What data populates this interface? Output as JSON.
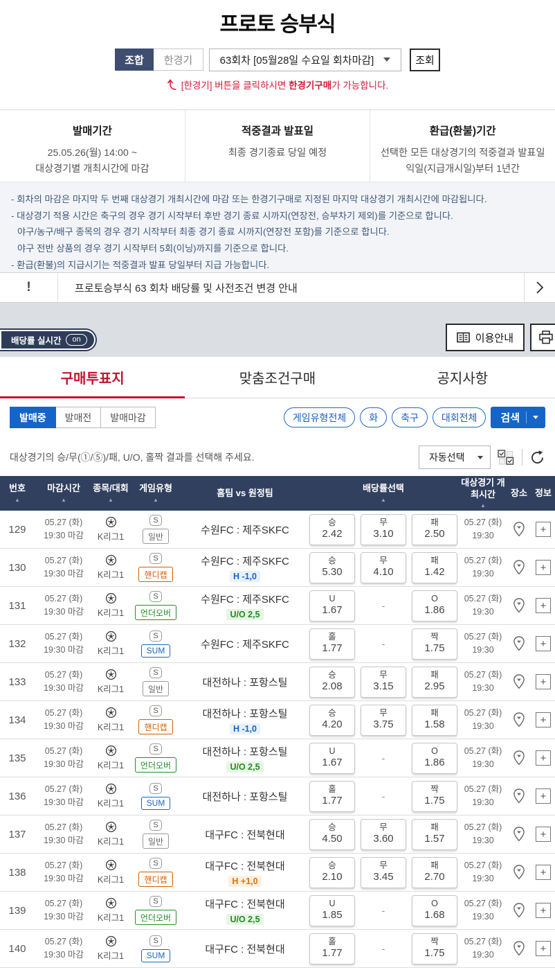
{
  "page_title": "프로토 승부식",
  "top_controls": {
    "combo_tab": "조합",
    "single_tab": "한경기",
    "round_dropdown": "63회차 [05월28일 수요일 회차마감]",
    "inquiry_button": "조회",
    "notice_pre": "[한경기] 버튼을 클릭하시면 ",
    "notice_bold": "한경기구매",
    "notice_post": "가 가능합니다."
  },
  "info_cards": [
    {
      "title": "발매기간",
      "lines": [
        "25.05.26(월) 14:00 ~",
        "대상경기별 개최시간에 마감"
      ]
    },
    {
      "title": "적중결과 발표일",
      "lines": [
        "최종 경기종료 당일 예정"
      ]
    },
    {
      "title": "환급(환불)기간",
      "lines": [
        "선택한 모든 대상경기의 적중결과 발표일",
        "익일(지급개시일)부터 1년간"
      ]
    }
  ],
  "notes": [
    {
      "indent": false,
      "text": "- 회차의 마감은 마지막 두 번째 대상경기 개최시간에 마감 또는 한경기구매로 지정된 마지막 대상경기 개최시간에 마감됩니다."
    },
    {
      "indent": false,
      "text": "- 대상경기 적용 시간은 축구의 경우 경기 시작부터 후반 경기 종료 시까지(연장전, 승부차기 제외)를 기준으로 합니다."
    },
    {
      "indent": true,
      "text": "야구/농구/배구 종목의 경우 경기 시작부터 최종 경기 종료 시까지(연장전 포함)를 기준으로 합니다."
    },
    {
      "indent": true,
      "text": "야구 전반 상품의 경우 경기 시작부터 5회(이닝)까지를 기준으로 합니다."
    },
    {
      "indent": false,
      "text": "- 환급(환불)의 지급시기는 적중결과 발표 당일부터 지급 가능합니다."
    }
  ],
  "notice_bar": {
    "icon_text": "!",
    "text": "프로토승부식 63 회차 배당률 및 사전조건 변경 안내"
  },
  "utility_bar": {
    "realtime_label": "배당률 실시간",
    "realtime_state": "on",
    "guide_button": "이용안내"
  },
  "tabs": [
    {
      "label": "구매투표지",
      "active": true
    },
    {
      "label": "맞춤조건구매",
      "active": false
    },
    {
      "label": "공지사항",
      "active": false
    }
  ],
  "filters": {
    "status": [
      {
        "label": "발매중",
        "active": true
      },
      {
        "label": "발매전",
        "active": false
      },
      {
        "label": "발매마감",
        "active": false
      }
    ],
    "pills": [
      "게임유형전체",
      "화",
      "축구",
      "대회전체"
    ],
    "search_button": "검색"
  },
  "selection_bar": {
    "instruction": "대상경기의 승/무(①/⑤)/패, U/O, 홀짝 결과를 선택해 주세요.",
    "auto_select": "자동선택"
  },
  "icons": {
    "sport": "soccer-ball-icon",
    "game_scope": "single-game-s-icon",
    "place": "map-pin-icon",
    "info": "plus-icon",
    "guide": "book-icon",
    "print": "printer-icon",
    "notice": "exclamation-icon",
    "chevron": "chevron-right-icon",
    "arrow": "curved-up-arrow-icon",
    "refresh": "refresh-icon",
    "multi_check": "multi-checkbox-icon"
  },
  "colors": {
    "accent_red": "#c41230",
    "navy": "#31405f",
    "blue": "#1565c8",
    "orange": "#d35f00",
    "green": "#238a23"
  },
  "table": {
    "headers": [
      {
        "label": "번호",
        "sort": true
      },
      {
        "label": "마감시간",
        "sort": true
      },
      {
        "label": "종목/대회",
        "sort": true
      },
      {
        "label": "게임유형",
        "sort": true
      },
      {
        "label": "홈팀 vs 원정팀",
        "sort": false
      },
      {
        "label": "배당률선택",
        "sort": true
      },
      {
        "label": "대상경기 개최시간",
        "sort": true
      },
      {
        "label": "장소",
        "sort": false
      },
      {
        "label": "정보",
        "sort": false
      }
    ],
    "rows": [
      {
        "no": "129",
        "deadline": [
          "05.27 (화)",
          "19:30 마감"
        ],
        "league": "K리그1",
        "type": {
          "label": "일반",
          "style": "normal"
        },
        "teams": "수원FC : 제주SKFC",
        "condition": null,
        "odds": [
          {
            "label": "승",
            "value": "2.42"
          },
          {
            "label": "무",
            "value": "3.10"
          },
          {
            "label": "패",
            "value": "2.50"
          }
        ],
        "start": [
          "05.27 (화)",
          "19:30"
        ]
      },
      {
        "no": "130",
        "deadline": [
          "05.27 (화)",
          "19:30 마감"
        ],
        "league": "K리그1",
        "type": {
          "label": "핸디캡",
          "style": "handicap"
        },
        "teams": "수원FC : 제주SKFC",
        "condition": {
          "text": "H -1,0",
          "style": "blue"
        },
        "odds": [
          {
            "label": "승",
            "value": "5.30"
          },
          {
            "label": "무",
            "value": "4.10"
          },
          {
            "label": "패",
            "value": "1.42"
          }
        ],
        "start": [
          "05.27 (화)",
          "19:30"
        ]
      },
      {
        "no": "131",
        "deadline": [
          "05.27 (화)",
          "19:30 마감"
        ],
        "league": "K리그1",
        "type": {
          "label": "언더오버",
          "style": "underover"
        },
        "teams": "수원FC : 제주SKFC",
        "condition": {
          "text": "U/O 2,5",
          "style": "green"
        },
        "odds": [
          {
            "label": "U",
            "value": "1.67"
          },
          {
            "dash": "-"
          },
          {
            "label": "O",
            "value": "1.86"
          }
        ],
        "start": [
          "05.27 (화)",
          "19:30"
        ]
      },
      {
        "no": "132",
        "deadline": [
          "05.27 (화)",
          "19:30 마감"
        ],
        "league": "K리그1",
        "type": {
          "label": "SUM",
          "style": "sum"
        },
        "teams": "수원FC : 제주SKFC",
        "condition": null,
        "odds": [
          {
            "label": "홀",
            "value": "1.77"
          },
          {
            "dash": "-"
          },
          {
            "label": "짝",
            "value": "1.75"
          }
        ],
        "start": [
          "05.27 (화)",
          "19:30"
        ]
      },
      {
        "no": "133",
        "deadline": [
          "05.27 (화)",
          "19:30 마감"
        ],
        "league": "K리그1",
        "type": {
          "label": "일반",
          "style": "normal"
        },
        "teams": "대전하나 : 포항스틸",
        "condition": null,
        "odds": [
          {
            "label": "승",
            "value": "2.08"
          },
          {
            "label": "무",
            "value": "3.15"
          },
          {
            "label": "패",
            "value": "2.95"
          }
        ],
        "start": [
          "05.27 (화)",
          "19:30"
        ]
      },
      {
        "no": "134",
        "deadline": [
          "05.27 (화)",
          "19:30 마감"
        ],
        "league": "K리그1",
        "type": {
          "label": "핸디캡",
          "style": "handicap"
        },
        "teams": "대전하나 : 포항스틸",
        "condition": {
          "text": "H -1,0",
          "style": "blue"
        },
        "odds": [
          {
            "label": "승",
            "value": "4.20"
          },
          {
            "label": "무",
            "value": "3.75"
          },
          {
            "label": "패",
            "value": "1.58"
          }
        ],
        "start": [
          "05.27 (화)",
          "19:30"
        ]
      },
      {
        "no": "135",
        "deadline": [
          "05.27 (화)",
          "19:30 마감"
        ],
        "league": "K리그1",
        "type": {
          "label": "언더오버",
          "style": "underover"
        },
        "teams": "대전하나 : 포항스틸",
        "condition": {
          "text": "U/O 2,5",
          "style": "green"
        },
        "odds": [
          {
            "label": "U",
            "value": "1.67"
          },
          {
            "dash": "-"
          },
          {
            "label": "O",
            "value": "1.86"
          }
        ],
        "start": [
          "05.27 (화)",
          "19:30"
        ]
      },
      {
        "no": "136",
        "deadline": [
          "05.27 (화)",
          "19:30 마감"
        ],
        "league": "K리그1",
        "type": {
          "label": "SUM",
          "style": "sum"
        },
        "teams": "대전하나 : 포항스틸",
        "condition": null,
        "odds": [
          {
            "label": "홀",
            "value": "1.77"
          },
          {
            "dash": "-"
          },
          {
            "label": "짝",
            "value": "1.75"
          }
        ],
        "start": [
          "05.27 (화)",
          "19:30"
        ]
      },
      {
        "no": "137",
        "deadline": [
          "05.27 (화)",
          "19:30 마감"
        ],
        "league": "K리그1",
        "type": {
          "label": "일반",
          "style": "normal"
        },
        "teams": "대구FC : 전북현대",
        "condition": null,
        "odds": [
          {
            "label": "승",
            "value": "4.50"
          },
          {
            "label": "무",
            "value": "3.60"
          },
          {
            "label": "패",
            "value": "1.57"
          }
        ],
        "start": [
          "05.27 (화)",
          "19:30"
        ]
      },
      {
        "no": "138",
        "deadline": [
          "05.27 (화)",
          "19:30 마감"
        ],
        "league": "K리그1",
        "type": {
          "label": "핸디캡",
          "style": "handicap"
        },
        "teams": "대구FC : 전북현대",
        "condition": {
          "text": "H +1,0",
          "style": "orange"
        },
        "odds": [
          {
            "label": "승",
            "value": "2.10"
          },
          {
            "label": "무",
            "value": "3.45"
          },
          {
            "label": "패",
            "value": "2.70"
          }
        ],
        "start": [
          "05.27 (화)",
          "19:30"
        ]
      },
      {
        "no": "139",
        "deadline": [
          "05.27 (화)",
          "19:30 마감"
        ],
        "league": "K리그1",
        "type": {
          "label": "언더오버",
          "style": "underover"
        },
        "teams": "대구FC : 전북현대",
        "condition": {
          "text": "U/O 2,5",
          "style": "green"
        },
        "odds": [
          {
            "label": "U",
            "value": "1.85"
          },
          {
            "dash": "-"
          },
          {
            "label": "O",
            "value": "1.68"
          }
        ],
        "start": [
          "05.27 (화)",
          "19:30"
        ]
      },
      {
        "no": "140",
        "deadline": [
          "05.27 (화)",
          "19:30 마감"
        ],
        "league": "K리그1",
        "type": {
          "label": "SUM",
          "style": "sum"
        },
        "teams": "대구FC : 전북현대",
        "condition": null,
        "odds": [
          {
            "label": "홀",
            "value": "1.77"
          },
          {
            "dash": "-"
          },
          {
            "label": "짝",
            "value": "1.75"
          }
        ],
        "start": [
          "05.27 (화)",
          "19:30"
        ]
      }
    ]
  }
}
